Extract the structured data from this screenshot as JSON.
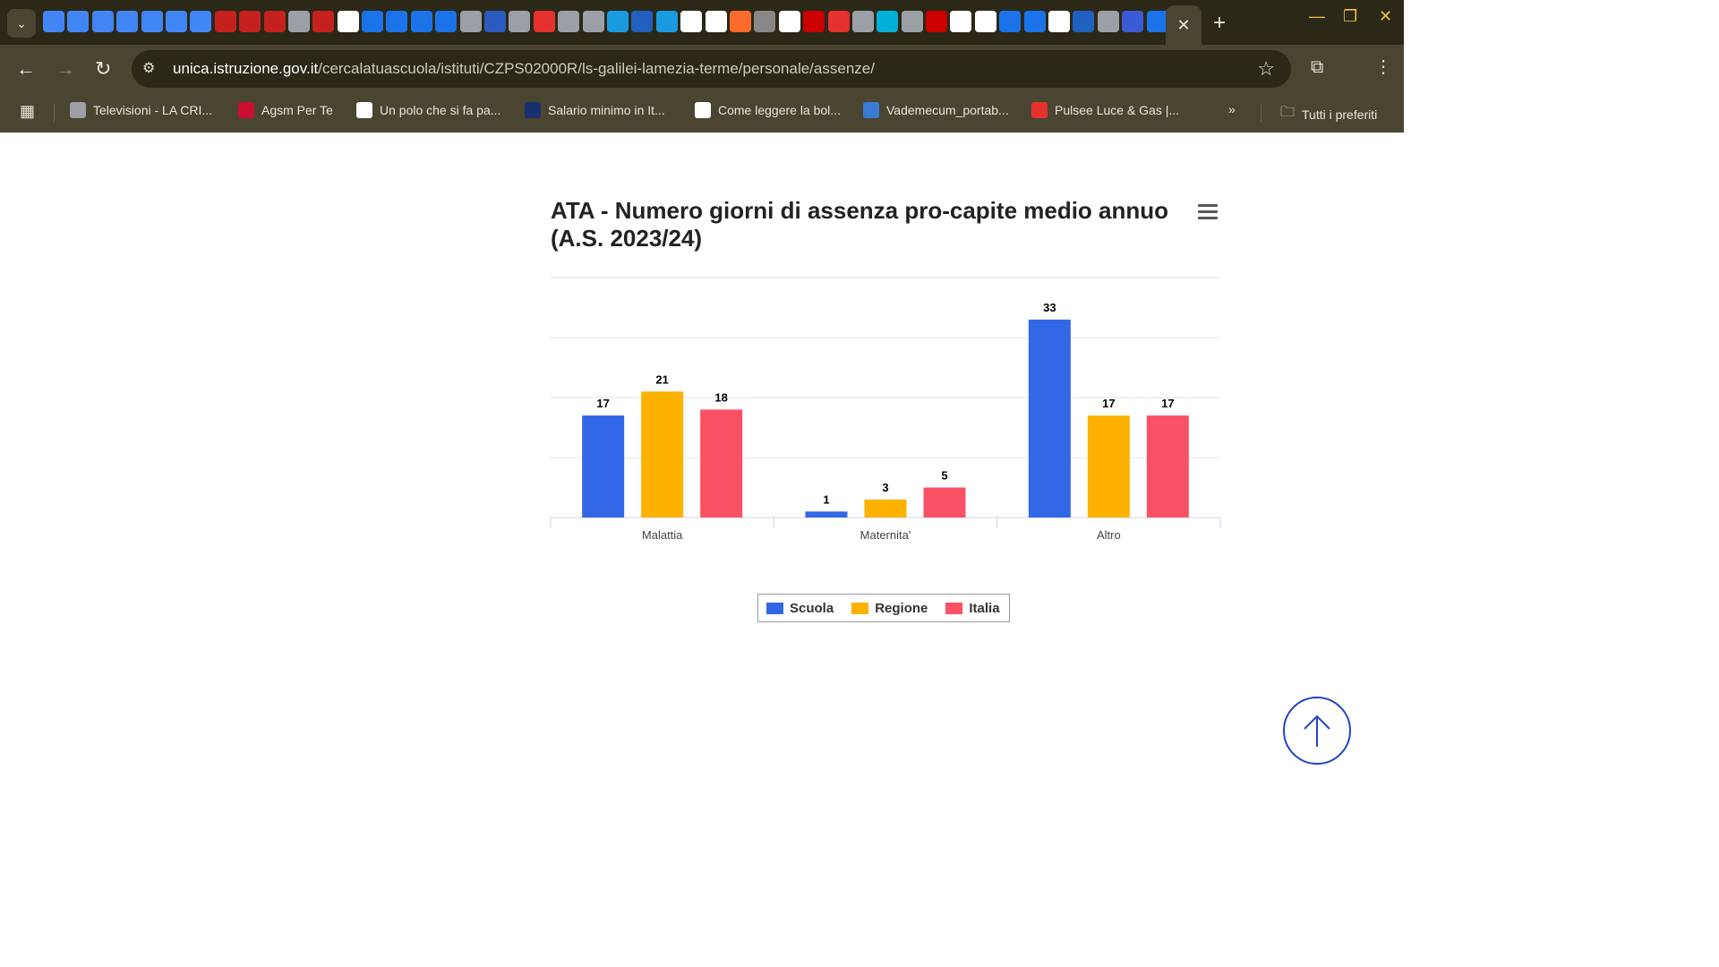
{
  "browser": {
    "url_domain": "unica.istruzione.gov.it",
    "url_path": "/cercalatuascuola/istituti/CZPS02000R/ls-galilei-lamezia-terme/personale/assenze/",
    "tab_close_glyph": "✕",
    "new_tab_glyph": "+",
    "bookmarks": [
      {
        "label": "Televisioni - LA CRI...",
        "icon": "globe-icon",
        "color": "#9aa0a6"
      },
      {
        "label": "Agsm Per Te",
        "icon": "am-logo-icon",
        "color": "#c8102e"
      },
      {
        "label": "Un polo che si fa pa...",
        "icon": "f-logo-icon",
        "color": "#ffffff"
      },
      {
        "label": "Salario minimo in It...",
        "icon": "q-logo-icon",
        "color": "#1a2f6e"
      },
      {
        "label": "Come leggere la bol...",
        "icon": "r-logo-icon",
        "color": "#ffffff"
      },
      {
        "label": "Vademecum_portab...",
        "icon": "m-logo-icon",
        "color": "#3a7bd5"
      },
      {
        "label": "Pulsee Luce & Gas |...",
        "icon": "pulsee-icon",
        "color": "#e6312f"
      }
    ],
    "bookmarks_more": "»",
    "all_bookmarks": "Tutti i preferiti"
  },
  "page": {
    "chart_title": "ATA - Numero giorni di assenza pro-capite medio annuo (A.S. 2023/24)"
  },
  "chart_data": {
    "type": "bar",
    "title": "ATA - Numero giorni di assenza pro-capite medio annuo (A.S. 2023/24)",
    "categories": [
      "Malattia",
      "Maternita'",
      "Altro"
    ],
    "series": [
      {
        "name": "Scuola",
        "values": [
          17,
          1,
          33
        ],
        "color": "#3268e6"
      },
      {
        "name": "Regione",
        "values": [
          21,
          3,
          17
        ],
        "color": "#fdb201"
      },
      {
        "name": "Italia",
        "values": [
          18,
          5,
          17
        ],
        "color": "#fb5165"
      }
    ],
    "ylim": [
      0,
      40
    ],
    "grid": true,
    "legend": "bottom-center",
    "data_labels": true
  },
  "legend": {
    "items": [
      {
        "label": "Scuola",
        "color": "#3268e6"
      },
      {
        "label": "Regione",
        "color": "#fdb201"
      },
      {
        "label": "Italia",
        "color": "#fb5165"
      }
    ]
  }
}
